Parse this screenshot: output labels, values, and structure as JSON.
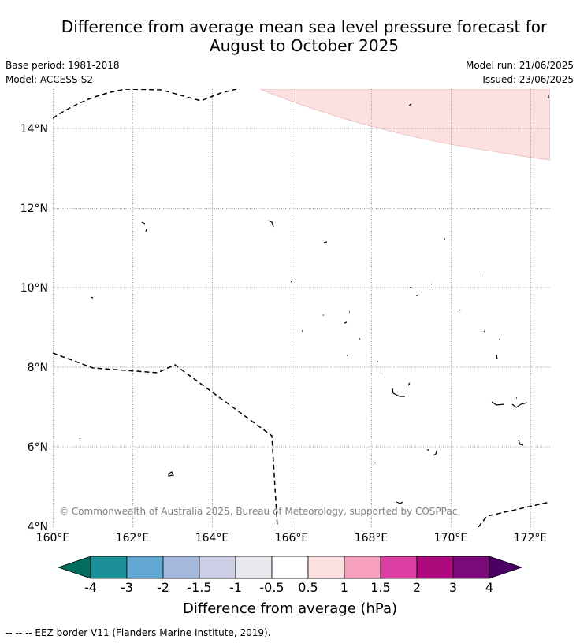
{
  "title": {
    "line1": "Difference from average mean sea level pressure forecast for",
    "line2": "August to October 2025"
  },
  "meta": {
    "base_period": "Base period: 1981-2018",
    "model": "Model: ACCESS-S2",
    "model_run": "Model run: 21/06/2025",
    "issued": "Issued: 23/06/2025"
  },
  "map": {
    "lat_labels": [
      "14°N",
      "12°N",
      "10°N",
      "8°N",
      "6°N",
      "4°N"
    ],
    "lon_labels": [
      "160°E",
      "162°E",
      "164°E",
      "166°E",
      "168°E",
      "170°E",
      "172°E"
    ],
    "copyright": "© Commonwealth of Australia 2025, Bureau of Meteorology, supported by COSPPac",
    "anomaly_region_color": "#fde0e0",
    "grid_color": "#777777"
  },
  "colorbar": {
    "label": "Difference from average (hPa)",
    "ticks": [
      "-4",
      "-3",
      "-2",
      "-1.5",
      "-1",
      "-0.5",
      "0.5",
      "1",
      "1.5",
      "2",
      "3",
      "4"
    ],
    "colors": [
      "#006e5c",
      "#1b9098",
      "#62a8d3",
      "#a4b8dc",
      "#cdcde6",
      "#e9e7ee",
      "#ffffff",
      "#fde0e0",
      "#f7a0bd",
      "#dc3fa2",
      "#ad0a7e",
      "#7d0a7a",
      "#4c0062"
    ]
  },
  "footnote": "--  --  -- EEZ border V11 (Flanders Marine Institute, 2019)."
}
